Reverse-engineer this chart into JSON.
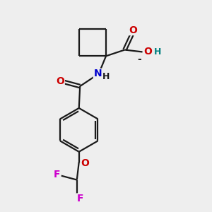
{
  "background_color": "#eeeeee",
  "bond_color": "#1a1a1a",
  "oxygen_color": "#cc0000",
  "nitrogen_color": "#0000cc",
  "fluorine_color": "#cc00cc",
  "oh_color": "#008080",
  "lw": 1.6,
  "fs": 10,
  "xlim": [
    0,
    10
  ],
  "ylim": [
    0,
    10
  ]
}
